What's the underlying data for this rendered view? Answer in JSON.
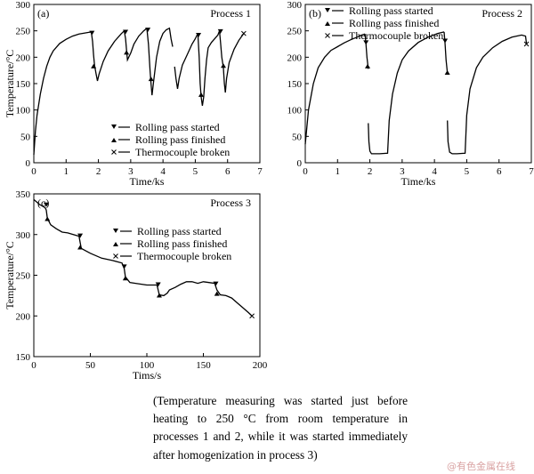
{
  "chart_data": [
    {
      "type": "line",
      "panel": "(a)",
      "title": "Process 1",
      "xlabel": "Time/ks",
      "ylabel": "Temperature/°C",
      "xlim": [
        0,
        7
      ],
      "ylim": [
        0,
        300
      ],
      "xticks": [
        0,
        1,
        2,
        3,
        4,
        5,
        6,
        7
      ],
      "yticks": [
        0,
        50,
        100,
        150,
        200,
        250,
        300
      ],
      "legend": [
        "Rolling pass started",
        "Rolling pass finished",
        "Thermocouple broken"
      ],
      "legend_position": "bottom-right",
      "segments": [
        [
          [
            0,
            15
          ],
          [
            0.05,
            60
          ],
          [
            0.1,
            90
          ],
          [
            0.2,
            130
          ],
          [
            0.3,
            160
          ],
          [
            0.4,
            183
          ],
          [
            0.5,
            200
          ],
          [
            0.6,
            212
          ],
          [
            0.8,
            226
          ],
          [
            1.0,
            234
          ],
          [
            1.2,
            240
          ],
          [
            1.4,
            244
          ],
          [
            1.6,
            246
          ],
          [
            1.78,
            248
          ]
        ],
        [
          [
            1.78,
            248
          ],
          [
            1.82,
            230
          ],
          [
            1.85,
            205
          ],
          [
            1.88,
            185
          ],
          [
            1.93,
            168
          ],
          [
            1.97,
            155
          ],
          [
            2.02,
            168
          ],
          [
            2.15,
            192
          ],
          [
            2.3,
            212
          ],
          [
            2.5,
            230
          ],
          [
            2.7,
            244
          ],
          [
            2.8,
            250
          ]
        ],
        [
          [
            2.8,
            250
          ],
          [
            2.84,
            235
          ],
          [
            2.87,
            215
          ],
          [
            2.9,
            195
          ],
          [
            3.0,
            208
          ],
          [
            3.1,
            225
          ],
          [
            3.25,
            240
          ],
          [
            3.4,
            250
          ],
          [
            3.5,
            255
          ]
        ],
        [
          [
            3.5,
            255
          ],
          [
            3.55,
            225
          ],
          [
            3.6,
            175
          ],
          [
            3.63,
            150
          ],
          [
            3.66,
            128
          ],
          [
            3.7,
            150
          ],
          [
            3.8,
            200
          ],
          [
            3.9,
            230
          ],
          [
            4.0,
            245
          ],
          [
            4.1,
            252
          ],
          [
            4.2,
            255
          ],
          [
            4.25,
            235
          ],
          [
            4.3,
            220
          ]
        ],
        [
          [
            4.36,
            182
          ],
          [
            4.4,
            160
          ],
          [
            4.45,
            140
          ],
          [
            4.5,
            160
          ],
          [
            4.6,
            185
          ],
          [
            4.75,
            205
          ],
          [
            4.9,
            225
          ],
          [
            5.0,
            235
          ],
          [
            5.08,
            245
          ]
        ],
        [
          [
            5.08,
            245
          ],
          [
            5.12,
            200
          ],
          [
            5.15,
            150
          ],
          [
            5.18,
            125
          ],
          [
            5.22,
            108
          ],
          [
            5.26,
            125
          ],
          [
            5.3,
            160
          ],
          [
            5.35,
            195
          ],
          [
            5.4,
            218
          ],
          [
            5.5,
            228
          ],
          [
            5.6,
            235
          ],
          [
            5.7,
            242
          ],
          [
            5.75,
            250
          ]
        ],
        [
          [
            5.75,
            250
          ],
          [
            5.78,
            230
          ],
          [
            5.82,
            200
          ],
          [
            5.87,
            180
          ],
          [
            5.9,
            150
          ],
          [
            5.93,
            133
          ],
          [
            5.97,
            160
          ],
          [
            6.05,
            190
          ],
          [
            6.2,
            215
          ],
          [
            6.35,
            232
          ],
          [
            6.5,
            245
          ]
        ]
      ],
      "markers": {
        "started": [
          [
            1.8,
            245
          ],
          [
            2.84,
            247
          ],
          [
            3.53,
            251
          ],
          [
            5.1,
            241
          ],
          [
            5.78,
            248
          ]
        ],
        "finished": [
          [
            1.85,
            184
          ],
          [
            2.87,
            210
          ],
          [
            3.63,
            160
          ],
          [
            5.18,
            130
          ],
          [
            5.87,
            185
          ]
        ],
        "broken": [
          [
            6.5,
            245
          ]
        ]
      }
    },
    {
      "type": "line",
      "panel": "(b)",
      "title": "Process 2",
      "xlabel": "Time/ks",
      "ylabel": "",
      "xlim": [
        0,
        7
      ],
      "ylim": [
        0,
        300
      ],
      "xticks": [
        0,
        1,
        2,
        3,
        4,
        5,
        6,
        7
      ],
      "yticks": [
        0,
        50,
        100,
        150,
        200,
        250,
        300
      ],
      "legend": [
        "Rolling pass started",
        "Rolling pass finished",
        "Thermocouple broken"
      ],
      "legend_position": "top-left",
      "segments": [
        [
          [
            0,
            35
          ],
          [
            0.1,
            100
          ],
          [
            0.25,
            150
          ],
          [
            0.4,
            180
          ],
          [
            0.6,
            200
          ],
          [
            0.8,
            213
          ],
          [
            1.0,
            220
          ],
          [
            1.2,
            227
          ],
          [
            1.4,
            233
          ],
          [
            1.6,
            238
          ],
          [
            1.75,
            242
          ],
          [
            1.85,
            244
          ]
        ],
        [
          [
            1.85,
            244
          ],
          [
            1.88,
            225
          ],
          [
            1.91,
            200
          ],
          [
            1.95,
            178
          ]
        ],
        [
          [
            1.95,
            75
          ],
          [
            1.97,
            40
          ],
          [
            2.0,
            22
          ],
          [
            2.05,
            17
          ],
          [
            2.3,
            17
          ],
          [
            2.55,
            18
          ],
          [
            2.6,
            80
          ],
          [
            2.7,
            130
          ],
          [
            2.85,
            170
          ],
          [
            3.0,
            195
          ],
          [
            3.2,
            212
          ],
          [
            3.5,
            228
          ],
          [
            3.8,
            238
          ],
          [
            4.1,
            245
          ],
          [
            4.3,
            248
          ]
        ],
        [
          [
            4.3,
            248
          ],
          [
            4.33,
            225
          ],
          [
            4.36,
            195
          ],
          [
            4.4,
            170
          ]
        ],
        [
          [
            4.4,
            80
          ],
          [
            4.42,
            40
          ],
          [
            4.47,
            20
          ],
          [
            4.55,
            17
          ],
          [
            4.7,
            17
          ],
          [
            4.95,
            18
          ],
          [
            5.0,
            90
          ],
          [
            5.1,
            140
          ],
          [
            5.3,
            180
          ],
          [
            5.5,
            200
          ],
          [
            5.8,
            218
          ],
          [
            6.1,
            230
          ],
          [
            6.4,
            238
          ],
          [
            6.7,
            242
          ],
          [
            6.82,
            240
          ],
          [
            6.85,
            225
          ]
        ]
      ],
      "markers": {
        "started": [
          [
            1.88,
            227
          ],
          [
            4.33,
            230
          ]
        ],
        "finished": [
          [
            1.93,
            184
          ],
          [
            4.4,
            172
          ]
        ],
        "broken": [
          [
            6.85,
            225
          ]
        ]
      }
    },
    {
      "type": "line",
      "panel": "(c)",
      "title": "Process 3",
      "xlabel": "Tims/s",
      "ylabel": "Temperature/°C",
      "xlim": [
        0,
        200
      ],
      "ylim": [
        150,
        350
      ],
      "xticks": [
        0,
        50,
        100,
        150,
        200
      ],
      "yticks": [
        150,
        200,
        250,
        300,
        350
      ],
      "legend": [
        "Rolling pass started",
        "Rolling pass finished",
        "Thermocouple broken"
      ],
      "legend_position": "top-right",
      "segments": [
        [
          [
            0,
            343
          ],
          [
            5,
            337
          ],
          [
            10,
            333
          ],
          [
            11,
            330
          ],
          [
            12,
            320
          ],
          [
            15,
            312
          ],
          [
            20,
            307
          ],
          [
            25,
            303
          ],
          [
            30,
            302
          ],
          [
            35,
            300
          ],
          [
            40,
            298
          ],
          [
            41,
            290
          ],
          [
            42,
            283
          ],
          [
            50,
            277
          ],
          [
            60,
            271
          ],
          [
            70,
            268
          ],
          [
            78,
            265
          ],
          [
            80,
            258
          ],
          [
            81,
            248
          ],
          [
            85,
            241
          ],
          [
            90,
            240
          ],
          [
            100,
            238
          ],
          [
            109,
            238
          ],
          [
            110,
            232
          ],
          [
            111,
            226
          ],
          [
            115,
            225
          ],
          [
            118,
            228
          ],
          [
            120,
            232
          ],
          [
            125,
            235
          ],
          [
            130,
            239
          ],
          [
            135,
            242
          ],
          [
            140,
            242
          ],
          [
            145,
            240
          ],
          [
            150,
            242
          ],
          [
            155,
            241
          ],
          [
            160,
            240
          ],
          [
            162,
            232
          ],
          [
            165,
            226
          ],
          [
            170,
            225
          ],
          [
            175,
            222
          ],
          [
            180,
            216
          ],
          [
            185,
            210
          ],
          [
            190,
            204
          ],
          [
            193,
            200
          ]
        ]
      ],
      "markers": {
        "started": [
          [
            11,
            336
          ],
          [
            41,
            298
          ],
          [
            80,
            260
          ],
          [
            110,
            238
          ],
          [
            161,
            239
          ]
        ],
        "finished": [
          [
            12,
            320
          ],
          [
            41,
            285
          ],
          [
            81,
            247
          ],
          [
            111,
            226
          ],
          [
            162,
            228
          ]
        ],
        "broken": [
          [
            193,
            200
          ]
        ]
      }
    }
  ],
  "caption": "(Temperature measuring was started just before heating to 250 °C from room temperature in processes 1 and 2, while it was started immediately after homogenization in process 3)",
  "watermark": "@有色金属在线"
}
